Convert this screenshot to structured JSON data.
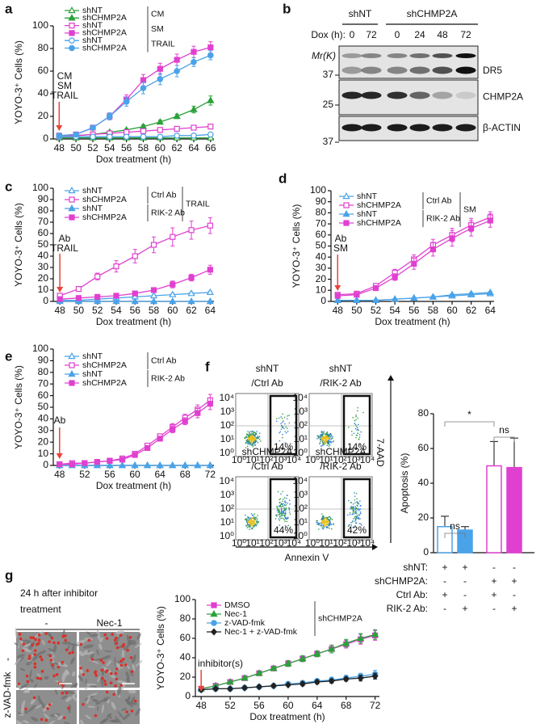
{
  "chart_data": [
    {
      "panel": "a",
      "type": "line",
      "x": [
        48,
        50,
        52,
        54,
        56,
        58,
        60,
        62,
        64,
        66
      ],
      "xlim": [
        47.3,
        66.4
      ],
      "xticks": [
        48,
        50,
        52,
        54,
        56,
        58,
        60,
        62,
        64,
        66
      ],
      "ylim": [
        0,
        100
      ],
      "yticks": [
        0,
        20,
        40,
        60,
        80,
        100
      ],
      "y_label": "YOYO-3⁺ Cells (%)",
      "x_label": "Dox treatment (h)",
      "annotation": [
        "CM",
        "SM",
        "TRAIL"
      ],
      "series": [
        {
          "name": "shNT",
          "group": "CM",
          "color": "#2aa13a",
          "marker": "triangle",
          "filled": false,
          "values": [
            1,
            1,
            1,
            1,
            1,
            1,
            1,
            1,
            1,
            1
          ]
        },
        {
          "name": "shCHMP2A",
          "group": "CM",
          "color": "#2aa13a",
          "marker": "triangle",
          "filled": true,
          "values": [
            2,
            3,
            4,
            6,
            8,
            11,
            15,
            20,
            26,
            34
          ],
          "errors": [
            0.5,
            0.5,
            0.5,
            1,
            1,
            1.5,
            1.5,
            2,
            3,
            4
          ]
        },
        {
          "name": "shNT",
          "group": "SM",
          "color": "#e040d0",
          "marker": "square",
          "filled": false,
          "values": [
            2,
            3,
            4,
            5,
            6,
            7,
            8,
            9,
            10,
            11
          ],
          "errors": [
            0.5,
            0.5,
            0.5,
            0.5,
            0.5,
            1,
            1,
            1,
            1,
            1
          ]
        },
        {
          "name": "shCHMP2A",
          "group": "SM",
          "color": "#e040d0",
          "marker": "square",
          "filled": true,
          "values": [
            3,
            4,
            10,
            20,
            35,
            52,
            62,
            70,
            77,
            81
          ],
          "errors": [
            1,
            1,
            1.5,
            3,
            4,
            5,
            5,
            5,
            5,
            5
          ]
        },
        {
          "name": "shNT",
          "group": "TRAIL",
          "color": "#4aa3e8",
          "marker": "circle",
          "filled": false,
          "values": [
            2,
            2,
            2,
            2,
            2,
            2,
            2,
            3,
            3,
            4
          ]
        },
        {
          "name": "shCHMP2A",
          "group": "TRAIL",
          "color": "#4aa3e8",
          "marker": "circle",
          "filled": true,
          "values": [
            3,
            4,
            10,
            20,
            33,
            45,
            53,
            60,
            68,
            74
          ],
          "errors": [
            1,
            1,
            1.5,
            3,
            4,
            5,
            5,
            5,
            4,
            4
          ]
        }
      ]
    },
    {
      "panel": "c",
      "type": "line",
      "x": [
        48,
        50,
        52,
        54,
        56,
        58,
        60,
        62,
        64
      ],
      "xlim": [
        47.3,
        64.4
      ],
      "xticks": [
        48,
        50,
        52,
        54,
        56,
        58,
        60,
        62,
        64
      ],
      "ylim": [
        0,
        100
      ],
      "yticks": [
        0,
        10,
        20,
        30,
        40,
        50,
        60,
        70,
        80,
        90,
        100
      ],
      "y_label": "YOYO-3⁺ Cells (%)",
      "x_label": "Dox treatment (h)",
      "annotation": [
        "Ab",
        "TRAIL"
      ],
      "legend_note": "TRAIL",
      "series": [
        {
          "name": "shNT",
          "group": "Ctrl Ab",
          "color": "#4aa3e8",
          "marker": "triangle",
          "filled": false,
          "values": [
            1,
            1,
            2,
            3,
            4,
            5,
            6,
            7,
            8
          ],
          "errors": [
            0.5,
            0.5,
            0.5,
            0.5,
            1,
            1,
            1,
            1,
            1
          ]
        },
        {
          "name": "shCHMP2A",
          "group": "Ctrl Ab",
          "color": "#e040d0",
          "marker": "square",
          "filled": false,
          "values": [
            5,
            11,
            22,
            31,
            40,
            50,
            57,
            63,
            67
          ],
          "errors": [
            1,
            2,
            3,
            5,
            6,
            7,
            8,
            8,
            7
          ]
        },
        {
          "name": "shNT",
          "group": "RIK-2 Ab",
          "color": "#4aa3e8",
          "marker": "triangle",
          "filled": true,
          "values": [
            0,
            0,
            0,
            0,
            0,
            0,
            0,
            0,
            0
          ]
        },
        {
          "name": "shCHMP2A",
          "group": "RIK-2 Ab",
          "color": "#e040d0",
          "marker": "square",
          "filled": true,
          "values": [
            2,
            3,
            4,
            5,
            7,
            10,
            15,
            21,
            28
          ],
          "errors": [
            1,
            1,
            1,
            1,
            1,
            2,
            3,
            3,
            4
          ]
        }
      ]
    },
    {
      "panel": "d",
      "type": "line",
      "x": [
        48,
        50,
        52,
        54,
        56,
        58,
        60,
        62,
        64
      ],
      "xlim": [
        47.3,
        64.4
      ],
      "xticks": [
        48,
        50,
        52,
        54,
        56,
        58,
        60,
        62,
        64
      ],
      "ylim": [
        0,
        100
      ],
      "yticks": [
        0,
        10,
        20,
        30,
        40,
        50,
        60,
        70,
        80,
        90,
        100
      ],
      "y_label": "YOYO-3⁺ Cells (%)",
      "x_label": "Dox treatment (h)",
      "annotation": [
        "Ab",
        "SM"
      ],
      "legend_note": "SM",
      "series": [
        {
          "name": "shNT",
          "group": "Ctrl Ab",
          "color": "#4aa3e8",
          "marker": "triangle",
          "filled": false,
          "values": [
            1,
            1,
            1,
            2,
            3,
            4,
            5,
            6,
            7
          ],
          "errors": [
            0.5,
            0.5,
            0.5,
            0.5,
            0.5,
            1,
            1,
            1,
            1
          ]
        },
        {
          "name": "shCHMP2A",
          "group": "Ctrl Ab",
          "color": "#e040d0",
          "marker": "square",
          "filled": false,
          "values": [
            6,
            7,
            14,
            26,
            38,
            51,
            60,
            69,
            76
          ],
          "errors": [
            1,
            1,
            2,
            3,
            4,
            5,
            6,
            6,
            5
          ]
        },
        {
          "name": "shNT",
          "group": "RIK-2 Ab",
          "color": "#4aa3e8",
          "marker": "triangle",
          "filled": true,
          "values": [
            1,
            1,
            1,
            2,
            3,
            4,
            6,
            7,
            8
          ],
          "errors": [
            0.5,
            0.5,
            0.5,
            0.5,
            0.5,
            1,
            1,
            1,
            1
          ]
        },
        {
          "name": "shCHMP2A",
          "group": "RIK-2 Ab",
          "color": "#e040d0",
          "marker": "square",
          "filled": true,
          "values": [
            5,
            6,
            12,
            22,
            34,
            47,
            57,
            66,
            73
          ],
          "errors": [
            1,
            1,
            2,
            3,
            5,
            6,
            7,
            7,
            6
          ]
        }
      ]
    },
    {
      "panel": "e",
      "type": "line",
      "x": [
        48,
        50,
        52,
        54,
        56,
        58,
        60,
        62,
        64,
        66,
        68,
        70,
        72
      ],
      "xlim": [
        47,
        72.6
      ],
      "xticks": [
        48,
        52,
        56,
        60,
        64,
        68,
        72
      ],
      "ylim": [
        0,
        100
      ],
      "yticks": [
        0,
        10,
        20,
        30,
        40,
        50,
        60,
        70,
        80,
        90,
        100
      ],
      "y_label": "YOYO-3⁺ Cells (%)",
      "x_label": "Dox treatment (h)",
      "annotation": [
        "Ab"
      ],
      "series": [
        {
          "name": "shNT",
          "group": "Ctrl Ab",
          "color": "#4aa3e8",
          "marker": "triangle",
          "filled": false,
          "values": [
            0,
            0,
            0,
            0,
            0,
            0,
            0,
            0,
            0,
            0,
            0,
            0,
            0
          ]
        },
        {
          "name": "shCHMP2A",
          "group": "Ctrl Ab",
          "color": "#e040d0",
          "marker": "square",
          "filled": false,
          "values": [
            1,
            2,
            2,
            3,
            4,
            6,
            10,
            17,
            25,
            33,
            41,
            48,
            56
          ],
          "errors": [
            0.5,
            0.5,
            0.5,
            0.5,
            0.5,
            1,
            1,
            2,
            2,
            3,
            3,
            4,
            5
          ]
        },
        {
          "name": "shNT",
          "group": "RIK-2 Ab",
          "color": "#4aa3e8",
          "marker": "triangle",
          "filled": true,
          "values": [
            0,
            0,
            0,
            0,
            0,
            0,
            0,
            0,
            0,
            0,
            0,
            0,
            0
          ]
        },
        {
          "name": "shCHMP2A",
          "group": "RIK-2 Ab",
          "color": "#e040d0",
          "marker": "square",
          "filled": true,
          "values": [
            1,
            1,
            2,
            3,
            4,
            5,
            9,
            15,
            23,
            31,
            38,
            45,
            53
          ],
          "errors": [
            0.5,
            0.5,
            0.5,
            0.5,
            0.5,
            1,
            1,
            2,
            2,
            3,
            3,
            4,
            5
          ]
        }
      ]
    },
    {
      "type": "bar",
      "values": [
        15,
        13,
        50,
        49
      ],
      "errors": [
        6,
        2,
        14,
        17
      ],
      "colors": [
        "#4aa3e8",
        "#4aa3e8",
        "#e040d0",
        "#e040d0"
      ],
      "filled": [
        false,
        true,
        false,
        true
      ],
      "ylim": [
        0,
        80
      ],
      "yticks": [
        0,
        20,
        40,
        60,
        80
      ],
      "y_label": "Apoptosis (%)",
      "significance": [
        "ns",
        "*",
        "ns"
      ],
      "conditions": [
        {
          "label": "shNT:",
          "signs": [
            "+",
            "+",
            "-",
            "-"
          ]
        },
        {
          "label": "shCHMP2A:",
          "signs": [
            "-",
            "-",
            "+",
            "+"
          ]
        },
        {
          "label": "Ctrl Ab:",
          "signs": [
            "+",
            "-",
            "+",
            "-"
          ]
        },
        {
          "label": "RIK-2 Ab:",
          "signs": [
            "-",
            "+",
            "-",
            "+"
          ]
        }
      ]
    },
    {
      "type": "line",
      "x": [
        48,
        50,
        52,
        54,
        56,
        58,
        60,
        62,
        64,
        66,
        68,
        70,
        72
      ],
      "xlim": [
        47.2,
        72.6
      ],
      "xticks": [
        48,
        52,
        56,
        60,
        64,
        68,
        72
      ],
      "ylim": [
        0,
        100
      ],
      "yticks": [
        0,
        20,
        40,
        60,
        80,
        100
      ],
      "y_label": "YOYO-3⁺ Cells (%)",
      "x_label": "Dox treatment (h)",
      "annotation": [
        "inhibitor(s)"
      ],
      "legend_note": "shCHMP2A",
      "series": [
        {
          "name": "DMSO",
          "color": "#e040d0",
          "marker": "square",
          "filled": true,
          "values": [
            8,
            11,
            15,
            19,
            24,
            29,
            34,
            39,
            44,
            49,
            54,
            59,
            63
          ],
          "errors": [
            1,
            1,
            1,
            2,
            2,
            2,
            3,
            3,
            3,
            4,
            4,
            5,
            5
          ]
        },
        {
          "name": "Nec-1",
          "color": "#2aa13a",
          "marker": "triangle",
          "filled": true,
          "values": [
            8,
            11,
            15,
            19,
            24,
            29,
            34,
            39,
            44,
            49,
            55,
            60,
            64
          ],
          "errors": [
            1,
            1,
            1,
            2,
            2,
            2,
            3,
            3,
            3,
            4,
            4,
            5,
            5
          ]
        },
        {
          "name": "z-VAD-fmk",
          "color": "#4aa3e8",
          "marker": "circle",
          "filled": true,
          "values": [
            7,
            8,
            8,
            9,
            10,
            11,
            13,
            14,
            16,
            17,
            19,
            21,
            23
          ],
          "errors": [
            1,
            1,
            1,
            1,
            1,
            1,
            2,
            2,
            2,
            3,
            3,
            3,
            4
          ]
        },
        {
          "name": "Nec-1 + z-VAD-fmk",
          "color": "#222222",
          "marker": "diamond",
          "filled": true,
          "values": [
            7,
            8,
            8,
            9,
            10,
            11,
            12,
            13,
            15,
            16,
            18,
            19,
            21
          ],
          "errors": [
            1,
            1,
            1,
            1,
            1,
            1,
            1,
            2,
            2,
            2,
            2,
            3,
            3
          ]
        }
      ]
    }
  ],
  "blot": {
    "panel": "b",
    "groups": [
      "shNT",
      "shCHMP2A"
    ],
    "dox_label": "Dox (h):",
    "lanes": [
      "0",
      "72",
      "0",
      "24",
      "48",
      "72"
    ],
    "mr_label": "Mr(K)",
    "proteins": [
      {
        "name": "DR5",
        "markers": [
          "37"
        ]
      },
      {
        "name": "CHMP2A",
        "markers": [
          "25"
        ]
      },
      {
        "name": "β-ACTIN",
        "markers": [
          "37"
        ]
      }
    ]
  },
  "flow": {
    "panel": "f",
    "x_label": "Annexin V",
    "y_label": "7-AAD",
    "axis_ticks": [
      "10⁰",
      "10¹",
      "10²",
      "10³",
      "10⁴"
    ],
    "plots": [
      {
        "title": [
          "shNT",
          "/Ctrl Ab"
        ],
        "percent": "14%"
      },
      {
        "title": [
          "shNT",
          "/RIK-2 Ab"
        ],
        "percent": "14%"
      },
      {
        "title": [
          "shCHMP2A",
          "/Ctrl Ab"
        ],
        "percent": "44%"
      },
      {
        "title": [
          "shCHMP2A",
          "/RIK-2 Ab"
        ],
        "percent": "42%"
      }
    ]
  },
  "micrographs": {
    "panel": "g",
    "title": [
      "24 h after inhibitor",
      "treatment"
    ],
    "columns": [
      "-",
      "Nec-1"
    ],
    "rows": [
      "-",
      "z-VAD-fmk"
    ]
  }
}
